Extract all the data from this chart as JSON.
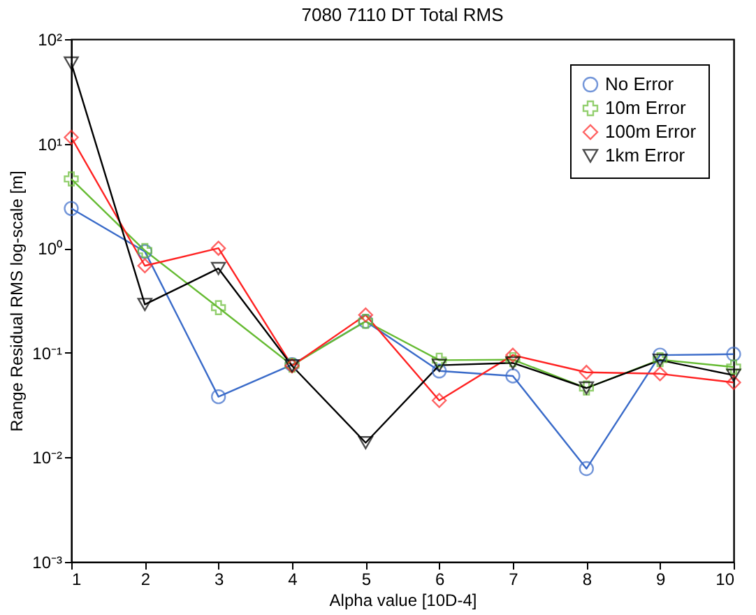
{
  "chart_data": {
    "type": "line",
    "title": "7080 7110 DT Total RMS",
    "xlabel": "Alpha value [10D-4]",
    "ylabel": "Range Residual RMS log-scale [m]",
    "x": [
      1,
      2,
      3,
      4,
      5,
      6,
      7,
      8,
      9,
      10
    ],
    "series": [
      {
        "name": "No Error",
        "color": "#3a6bc9",
        "marker": "circle",
        "values": [
          2.4,
          0.93,
          0.038,
          0.077,
          0.2,
          0.067,
          0.06,
          0.0078,
          0.095,
          0.097
        ]
      },
      {
        "name": "10m Error",
        "color": "#66bb33",
        "marker": "cross",
        "values": [
          4.6,
          0.95,
          0.27,
          0.076,
          0.2,
          0.085,
          0.086,
          0.046,
          0.086,
          0.073
        ]
      },
      {
        "name": "100m Error",
        "color": "#ff2222",
        "marker": "diamond",
        "values": [
          11.5,
          0.68,
          1.0,
          0.075,
          0.23,
          0.035,
          0.095,
          0.065,
          0.063,
          0.052
        ]
      },
      {
        "name": "1km Error",
        "color": "#000000",
        "marker": "triangle",
        "values": [
          59,
          0.29,
          0.64,
          0.075,
          0.0138,
          0.076,
          0.08,
          0.046,
          0.085,
          0.061
        ]
      }
    ],
    "log": true,
    "xlim": [
      1,
      10
    ],
    "xticks": [
      1,
      2,
      3,
      4,
      5,
      6,
      7,
      8,
      9,
      10
    ],
    "ylim": [
      0.001,
      100
    ],
    "yticks": [
      {
        "value": 0.001,
        "label": "10⁻³"
      },
      {
        "value": 0.01,
        "label": "10⁻²"
      },
      {
        "value": 0.1,
        "label": "10⁻¹"
      },
      {
        "value": 1,
        "label": "10⁰"
      },
      {
        "value": 10,
        "label": "10¹"
      },
      {
        "value": 100,
        "label": "10²"
      }
    ],
    "grid": false,
    "legend": "top right",
    "line_style": "solid"
  }
}
